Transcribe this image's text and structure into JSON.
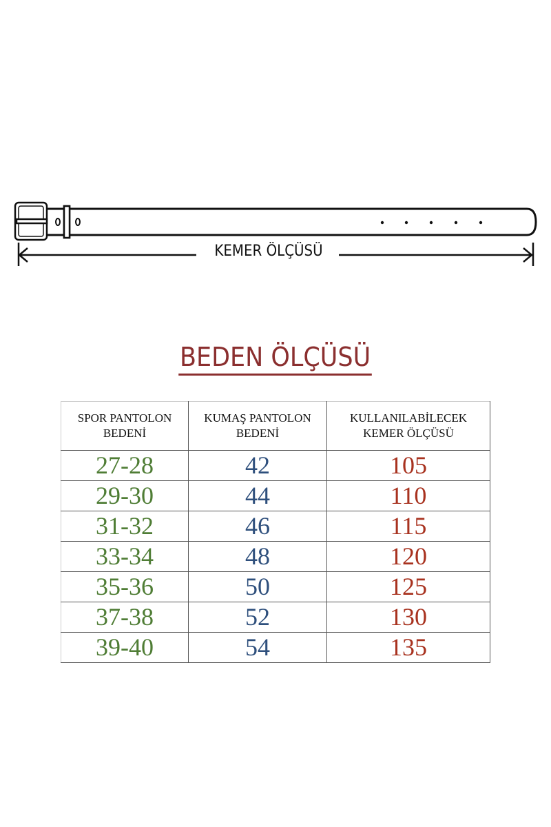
{
  "belt_diagram": {
    "label": "KEMER ÖLÇÜSÜ"
  },
  "title": "BEDEN ÖLÇÜSÜ",
  "colors": {
    "title": "#8b2f2f",
    "col1": "#4f7d35",
    "col2": "#2e4f7c",
    "col3": "#a8321f"
  },
  "table": {
    "headers": [
      {
        "line1": "SPOR PANTOLON",
        "line2": "BEDENİ"
      },
      {
        "line1": "KUMAŞ PANTOLON",
        "line2": "BEDENİ"
      },
      {
        "line1": "KULLANILABİLECEK",
        "line2": "KEMER ÖLÇÜSÜ"
      }
    ],
    "rows": [
      [
        "27-28",
        "42",
        "105"
      ],
      [
        "29-30",
        "44",
        "110"
      ],
      [
        "31-32",
        "46",
        "115"
      ],
      [
        "33-34",
        "48",
        "120"
      ],
      [
        "35-36",
        "50",
        "125"
      ],
      [
        "37-38",
        "52",
        "130"
      ],
      [
        "39-40",
        "54",
        "135"
      ]
    ]
  }
}
